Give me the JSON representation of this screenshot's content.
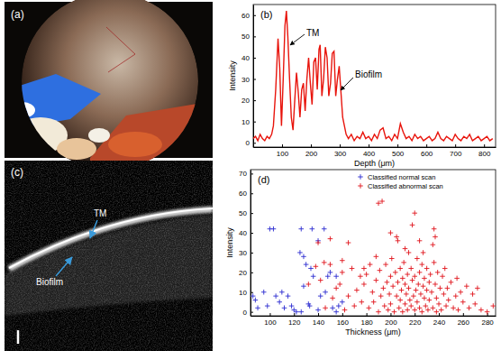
{
  "chart_data": [
    {
      "type": "line",
      "title": "(b)",
      "x_label": "Depth (μm)",
      "y_label": "Intensity",
      "annotations": [
        "TM",
        "Biofilm"
      ],
      "color": "#e8140c",
      "xlim": [
        0,
        840
      ],
      "ylim": [
        -2,
        65
      ],
      "xticks": [
        100,
        200,
        300,
        400,
        500,
        600,
        700,
        800
      ],
      "yticks": [
        0,
        10,
        20,
        30,
        40,
        50,
        60
      ],
      "x": [
        0,
        8,
        16,
        24,
        32,
        40,
        48,
        56,
        64,
        70,
        78,
        86,
        92,
        98,
        104,
        110,
        115,
        120,
        126,
        132,
        138,
        144,
        150,
        156,
        162,
        168,
        174,
        180,
        186,
        192,
        198,
        204,
        210,
        216,
        222,
        228,
        232,
        238,
        244,
        250,
        256,
        262,
        268,
        274,
        280,
        286,
        292,
        298,
        304,
        310,
        316,
        322,
        330,
        340,
        350,
        360,
        370,
        380,
        390,
        400,
        410,
        420,
        430,
        440,
        450,
        460,
        470,
        480,
        490,
        500,
        510,
        520,
        530,
        540,
        550,
        560,
        570,
        580,
        590,
        600,
        610,
        620,
        630,
        640,
        650,
        660,
        670,
        680,
        690,
        700,
        710,
        720,
        730,
        740,
        750,
        760,
        770,
        780,
        790,
        800,
        810,
        820,
        830
      ],
      "values": [
        2,
        3,
        1,
        4,
        2,
        1,
        3,
        2,
        4,
        8,
        25,
        49,
        35,
        8,
        30,
        55,
        62,
        50,
        30,
        12,
        6,
        20,
        33,
        24,
        12,
        25,
        28,
        15,
        30,
        40,
        28,
        18,
        38,
        40,
        25,
        44,
        46,
        22,
        30,
        45,
        40,
        22,
        28,
        42,
        43,
        22,
        30,
        36,
        24,
        12,
        8,
        4,
        2,
        4,
        1,
        3,
        2,
        5,
        2,
        3,
        1,
        4,
        2,
        6,
        7,
        2,
        3,
        1,
        4,
        2,
        9,
        5,
        2,
        3,
        1,
        4,
        2,
        3,
        1,
        2,
        3,
        1,
        2,
        5,
        2,
        1,
        3,
        2,
        1,
        4,
        2,
        1,
        3,
        2,
        4,
        1,
        2,
        3,
        1,
        2,
        3,
        1,
        2
      ]
    },
    {
      "type": "scatter",
      "title": "(d)",
      "x_label": "Thickness (μm)",
      "y_label": "Intensity",
      "legend": "upper center",
      "xlim": [
        84,
        287
      ],
      "ylim": [
        -2,
        72
      ],
      "xticks": [
        100,
        120,
        140,
        160,
        180,
        200,
        220,
        240,
        260,
        280
      ],
      "yticks": [
        0,
        10,
        20,
        30,
        40,
        50,
        60,
        70
      ],
      "series": [
        {
          "name": "Classified normal scan",
          "color": "#2b2bd0",
          "marker": "plus",
          "x": [
            86,
            88,
            90,
            95,
            98,
            100,
            103,
            105,
            108,
            110,
            112,
            115,
            118,
            120,
            122,
            125,
            126,
            126,
            128,
            128,
            130,
            132,
            133,
            134,
            135,
            136,
            140,
            140,
            142,
            145,
            146,
            148,
            150,
            152,
            155,
            155,
            157,
            160
          ],
          "values": [
            8,
            6,
            2,
            10,
            3,
            42,
            42,
            8,
            5,
            10,
            2,
            8,
            3,
            1,
            0,
            30,
            42,
            0,
            13,
            28,
            24,
            4,
            3,
            22,
            42,
            18,
            36,
            1,
            8,
            42,
            10,
            18,
            20,
            2,
            0,
            18,
            3,
            5
          ]
        },
        {
          "name": "Classified abnormal scan",
          "color": "#e0141c",
          "marker": "plus",
          "x": [
            132,
            138,
            140,
            142,
            145,
            146,
            150,
            152,
            155,
            158,
            160,
            162,
            165,
            168,
            170,
            172,
            175,
            176,
            178,
            180,
            182,
            183,
            185,
            186,
            188,
            190,
            190,
            191,
            192,
            193,
            194,
            195,
            196,
            197,
            198,
            199,
            200,
            200,
            201,
            202,
            203,
            204,
            205,
            205,
            206,
            207,
            208,
            208,
            209,
            210,
            210,
            211,
            212,
            212,
            213,
            214,
            214,
            215,
            215,
            216,
            217,
            217,
            218,
            218,
            219,
            220,
            220,
            220,
            221,
            222,
            222,
            223,
            224,
            224,
            225,
            226,
            226,
            227,
            228,
            228,
            229,
            230,
            230,
            231,
            232,
            232,
            233,
            234,
            235,
            235,
            236,
            236,
            237,
            237,
            238,
            238,
            239,
            240,
            241,
            242,
            243,
            244,
            245,
            246,
            247,
            248,
            250,
            252,
            254,
            255,
            256,
            258,
            260,
            263,
            265,
            268,
            270,
            272,
            275,
            280,
            285,
            212,
            206,
            200,
            224,
            188,
            178,
            160,
            165,
            150,
            227
          ],
          "values": [
            14,
            23,
            35,
            16,
            25,
            2,
            24,
            7,
            12,
            14,
            20,
            1,
            8,
            22,
            3,
            11,
            18,
            5,
            14,
            19,
            2,
            24,
            10,
            5,
            16,
            0,
            55,
            21,
            8,
            56,
            12,
            3,
            24,
            15,
            1,
            9,
            18,
            4,
            27,
            13,
            0,
            20,
            8,
            38,
            15,
            2,
            22,
            6,
            11,
            17,
            0,
            25,
            4,
            14,
            9,
            19,
            1,
            30,
            12,
            6,
            3,
            22,
            16,
            44,
            8,
            50,
            1,
            18,
            11,
            27,
            5,
            14,
            2,
            20,
            9,
            24,
            0,
            13,
            7,
            17,
            3,
            22,
            11,
            1,
            15,
            6,
            19,
            10,
            34,
            2,
            42,
            25,
            38,
            14,
            7,
            0,
            20,
            4,
            12,
            1,
            18,
            9,
            22,
            3,
            12,
            6,
            15,
            2,
            8,
            17,
            1,
            10,
            5,
            13,
            2,
            9,
            4,
            12,
            1,
            0,
            3,
            32,
            36,
            40,
            36,
            28,
            22,
            26,
            35,
            37,
            30
          ]
        }
      ]
    }
  ],
  "images": [
    {
      "label": "(a)"
    },
    {
      "label": "(c)",
      "annotations": [
        "TM",
        "Biofilm"
      ]
    }
  ]
}
